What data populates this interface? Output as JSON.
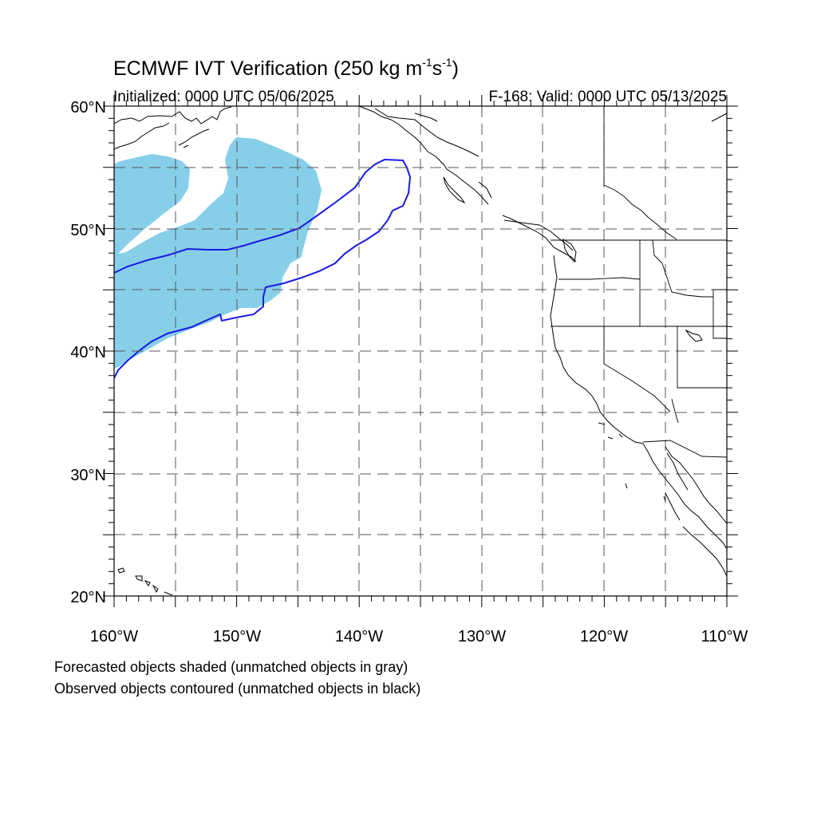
{
  "title": {
    "main": "ECMWF IVT Verification (250 kg m",
    "sup1": "-1",
    "mid": "s",
    "sup2": "-1",
    "end": ")"
  },
  "init_label": "Initialized: 0000 UTC 05/06/2025",
  "valid_label": "F-168: Valid: 0000 UTC 05/13/2025",
  "footer": {
    "line1": "Forecasted objects shaded (unmatched objects in gray)",
    "line2": "Observed objects contoured (unmatched objects in black)"
  },
  "map": {
    "lon_range": [
      -160,
      -110
    ],
    "lat_range": [
      20,
      60
    ],
    "lat_ticks": [
      {
        "value": 60,
        "label": "60°N"
      },
      {
        "value": 50,
        "label": "50°N"
      },
      {
        "value": 40,
        "label": "40°N"
      },
      {
        "value": 30,
        "label": "30°N"
      },
      {
        "value": 20,
        "label": "20°N"
      }
    ],
    "lon_ticks": [
      {
        "value": -160,
        "label": "160°W"
      },
      {
        "value": -150,
        "label": "150°W"
      },
      {
        "value": -140,
        "label": "140°W"
      },
      {
        "value": -130,
        "label": "130°W"
      },
      {
        "value": -120,
        "label": "120°W"
      },
      {
        "value": -110,
        "label": "110°W"
      }
    ],
    "grid_spacing_deg": 5,
    "colors": {
      "forecast_fill": "#87cfe8",
      "observed_contour": "#1a1ae6",
      "coastline": "#000000",
      "grid": "#555555"
    }
  }
}
